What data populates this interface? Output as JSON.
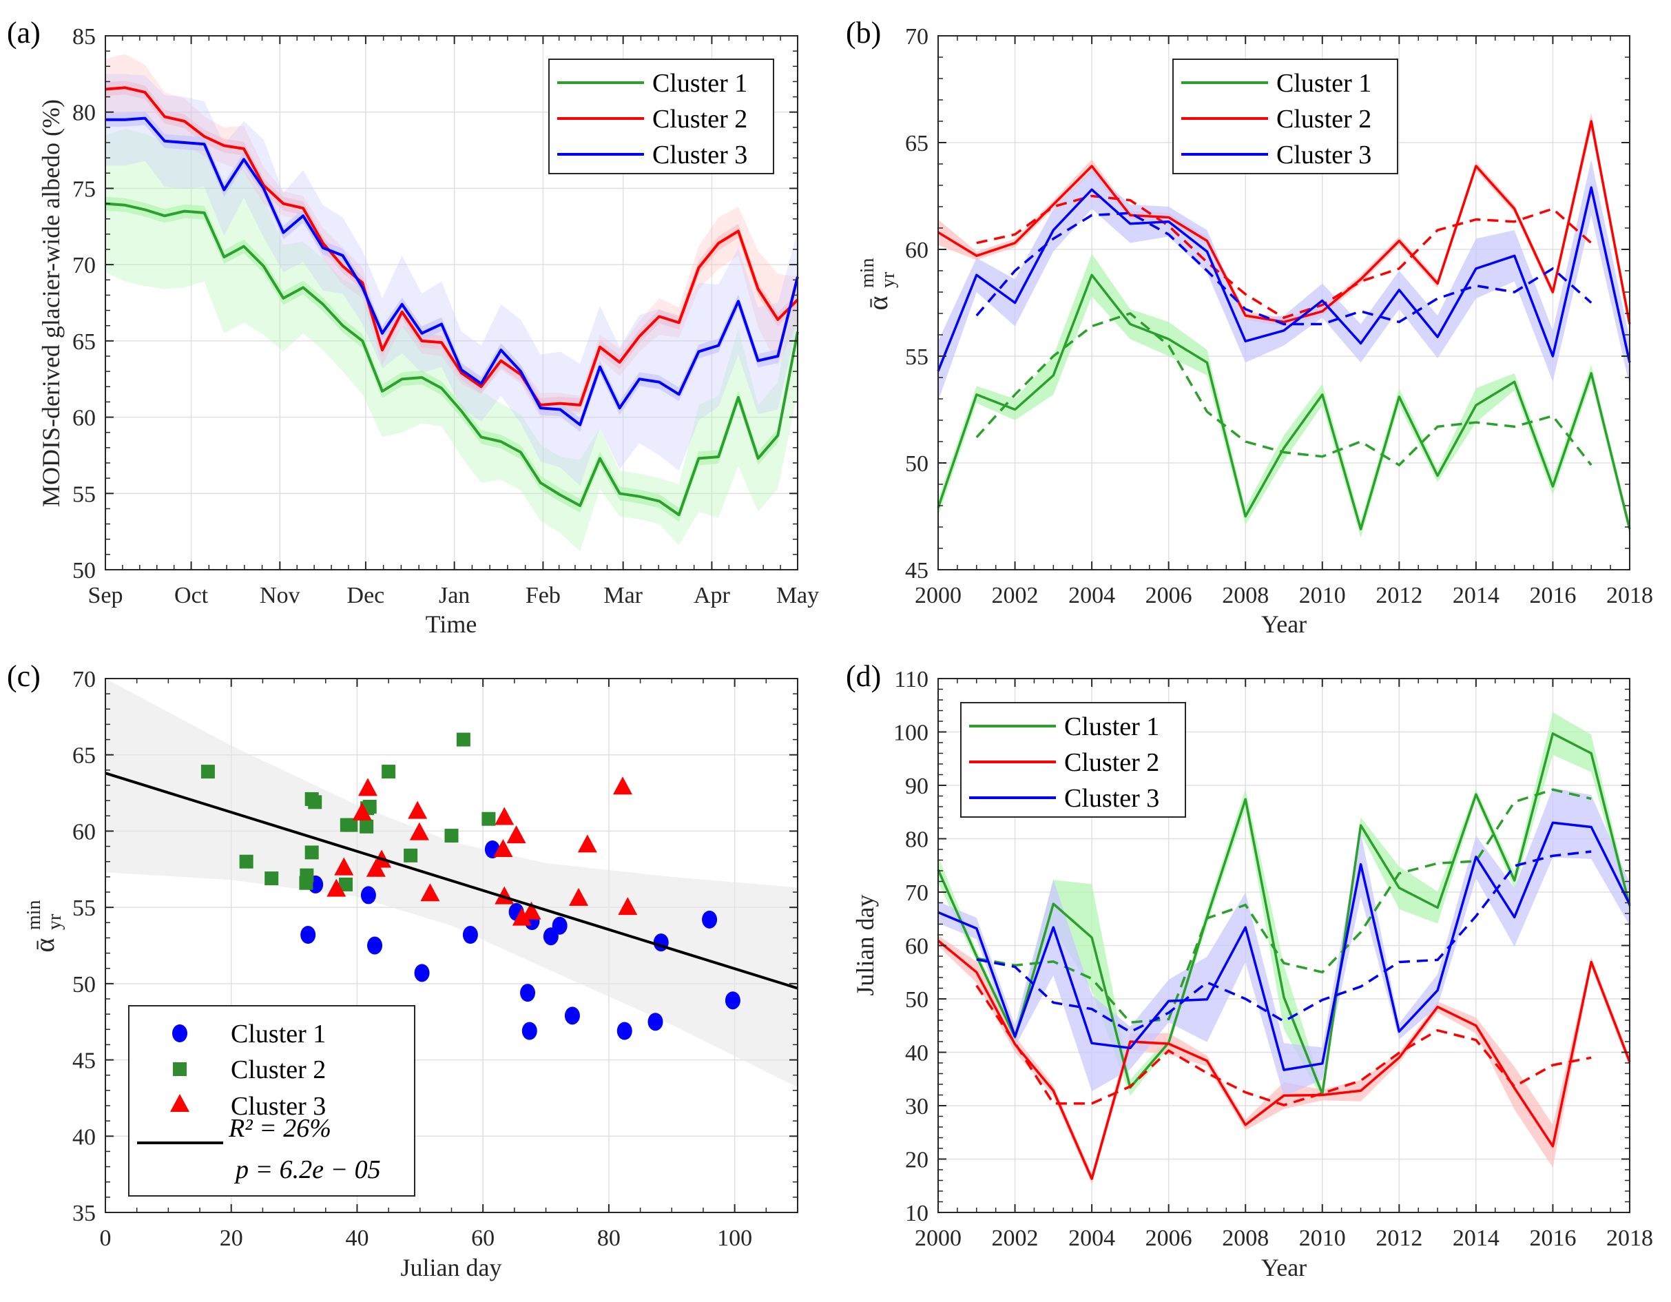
{
  "colors": {
    "cluster1": "#2ca02c",
    "cluster2": "#ff0000",
    "cluster3": "#0000ff",
    "c1_band": "#b3f5b3",
    "c2_band": "#ffc0c0",
    "c3_band": "#c8c8ff",
    "scatter_c1": "#0000ff",
    "scatter_c2": "#2e8b2e",
    "scatter_c3": "#ff0000",
    "ci_band": "#e6e6e6",
    "grid": "#e0e0e0",
    "axis": "#262626"
  },
  "chart_data": [
    {
      "panel": "(a)",
      "type": "line",
      "title": "",
      "xlabel": "Time",
      "ylabel": "MODIS-derived glacier-wide albedo (%)",
      "xlim_days": [
        0,
        242
      ],
      "ylim": [
        50,
        85
      ],
      "yticks": [
        50,
        55,
        60,
        65,
        70,
        75,
        80,
        85
      ],
      "xticks": [
        {
          "label": "Sep",
          "day": 0
        },
        {
          "label": "Oct",
          "day": 30
        },
        {
          "label": "Nov",
          "day": 61
        },
        {
          "label": "Dec",
          "day": 91
        },
        {
          "label": "Jan",
          "day": 122
        },
        {
          "label": "Feb",
          "day": 153
        },
        {
          "label": "Mar",
          "day": 181
        },
        {
          "label": "Apr",
          "day": 212
        },
        {
          "label": "May",
          "day": 242
        }
      ],
      "grid": true,
      "legend": {
        "placement": "top-right",
        "entries": [
          "Cluster 1",
          "Cluster 2",
          "Cluster 3"
        ]
      },
      "x_step_days": 6.914,
      "series": [
        {
          "name": "Cluster 1",
          "color_key": "cluster1",
          "values": [
            74.0,
            73.9,
            73.6,
            73.2,
            73.5,
            73.4,
            70.5,
            71.2,
            69.9,
            67.8,
            68.5,
            67.4,
            66.0,
            65.0,
            61.7,
            62.5,
            62.6,
            61.9,
            60.4,
            58.7,
            58.4,
            57.7,
            55.7,
            54.9,
            54.2,
            57.3,
            55.0,
            54.8,
            54.5,
            53.6,
            57.3,
            57.4,
            61.3,
            57.3,
            58.8,
            65.6
          ],
          "spread": [
            4.5,
            5.0,
            5.0,
            4.8,
            5.0,
            4.5,
            5.0,
            5.0,
            4.5,
            3.5,
            3.0,
            3.0,
            3.0,
            3.5,
            3.0,
            3.5,
            3.0,
            2.5,
            3.0,
            3.0,
            2.5,
            2.5,
            2.5,
            2.5,
            3.0,
            2.0,
            1.5,
            1.5,
            1.5,
            2.0,
            3.5,
            4.0,
            4.5,
            3.5,
            3.5,
            4.0
          ]
        },
        {
          "name": "Cluster 2",
          "color_key": "cluster2",
          "values": [
            81.5,
            81.6,
            81.3,
            79.7,
            79.4,
            78.4,
            77.8,
            77.6,
            75.2,
            74.0,
            73.7,
            71.4,
            69.9,
            68.8,
            64.4,
            66.9,
            65.0,
            64.9,
            62.9,
            62.0,
            63.7,
            62.8,
            60.8,
            60.9,
            60.8,
            64.6,
            63.6,
            65.3,
            66.6,
            66.2,
            69.8,
            71.4,
            72.2,
            68.4,
            66.4,
            67.7
          ],
          "spread": [
            2.0,
            2.2,
            1.8,
            1.6,
            1.5,
            1.3,
            1.2,
            1.5,
            1.2,
            0.8,
            0.8,
            1.0,
            1.2,
            1.0,
            1.0,
            0.9,
            0.8,
            0.9,
            0.7,
            0.5,
            0.6,
            0.6,
            0.8,
            0.7,
            0.6,
            0.8,
            0.9,
            1.0,
            1.2,
            1.0,
            1.4,
            1.7,
            1.6,
            2.5,
            3.0,
            1.5
          ]
        },
        {
          "name": "Cluster 3",
          "color_key": "cluster3",
          "values": [
            79.5,
            79.5,
            79.6,
            78.1,
            78.0,
            77.9,
            74.9,
            76.9,
            75.0,
            72.1,
            73.2,
            71.1,
            70.6,
            68.5,
            65.5,
            67.4,
            65.5,
            66.1,
            63.1,
            62.2,
            64.4,
            63.0,
            60.6,
            60.5,
            59.5,
            63.3,
            60.6,
            62.5,
            62.3,
            61.5,
            64.3,
            64.7,
            67.6,
            63.7,
            64.0,
            69.2
          ],
          "spread": [
            3.0,
            3.0,
            2.8,
            3.0,
            3.0,
            2.8,
            3.0,
            2.5,
            3.2,
            2.6,
            3.0,
            2.8,
            2.5,
            2.4,
            2.3,
            3.2,
            2.6,
            2.8,
            2.5,
            2.5,
            3.0,
            3.4,
            3.5,
            3.8,
            4.0,
            4.0,
            4.0,
            4.2,
            4.8,
            5.0,
            4.5,
            4.0,
            3.5,
            3.5,
            3.5,
            3.0
          ]
        }
      ]
    },
    {
      "panel": "(b)",
      "type": "line",
      "title": "",
      "xlabel": "Year",
      "ylabel": "ᾱ_yr^min",
      "xlim": [
        2000,
        2018
      ],
      "ylim": [
        45,
        70
      ],
      "xticks": [
        2000,
        2002,
        2004,
        2006,
        2008,
        2010,
        2012,
        2014,
        2016,
        2018
      ],
      "yticks": [
        45,
        50,
        55,
        60,
        65,
        70
      ],
      "grid": true,
      "legend": {
        "placement": "top-center",
        "entries": [
          "Cluster 1",
          "Cluster 2",
          "Cluster 3"
        ]
      },
      "x": [
        2000,
        2001,
        2002,
        2003,
        2004,
        2005,
        2006,
        2007,
        2008,
        2009,
        2010,
        2011,
        2012,
        2013,
        2014,
        2015,
        2016,
        2017,
        2018
      ],
      "x_trend": [
        2001,
        2002,
        2003,
        2004,
        2005,
        2006,
        2007,
        2008,
        2009,
        2010,
        2011,
        2012,
        2013,
        2014,
        2015,
        2016,
        2017
      ],
      "series": [
        {
          "name": "Cluster 1",
          "color_key": "cluster1",
          "values": [
            47.9,
            53.2,
            52.5,
            54.1,
            58.8,
            56.5,
            55.8,
            54.7,
            47.5,
            50.7,
            53.2,
            46.9,
            53.1,
            49.4,
            52.7,
            53.8,
            48.9,
            54.2,
            46.9
          ],
          "spread": [
            0.4,
            0.4,
            0.5,
            0.9,
            1.0,
            0.7,
            0.8,
            0.6,
            0.4,
            0.6,
            0.5,
            0.4,
            0.4,
            0.3,
            0.8,
            0.4,
            0.4,
            0.4,
            0.3
          ],
          "trend": [
            51.2,
            53.2,
            55.0,
            56.4,
            57.0,
            55.5,
            52.4,
            51.0,
            50.5,
            50.3,
            51.0,
            49.9,
            51.7,
            51.9,
            51.7,
            52.2,
            49.9
          ]
        },
        {
          "name": "Cluster 2",
          "color_key": "cluster2",
          "values": [
            60.8,
            59.7,
            60.3,
            62.1,
            63.9,
            61.6,
            61.5,
            60.4,
            56.9,
            56.6,
            57.1,
            58.6,
            60.4,
            58.4,
            63.9,
            61.9,
            58.0,
            66.0,
            56.5
          ],
          "spread": [
            0.6,
            0.2,
            0.2,
            0.2,
            0.3,
            0.2,
            0.2,
            0.2,
            0.2,
            0.2,
            0.2,
            0.2,
            0.2,
            0.2,
            0.2,
            0.2,
            0.2,
            0.4,
            0.2
          ],
          "trend": [
            60.3,
            60.7,
            62.0,
            62.5,
            62.3,
            61.1,
            59.4,
            57.9,
            56.8,
            57.4,
            58.5,
            59.1,
            60.9,
            61.4,
            61.3,
            61.9,
            60.3
          ]
        },
        {
          "name": "Cluster 3",
          "color_key": "cluster3",
          "values": [
            54.3,
            58.8,
            57.5,
            60.9,
            62.8,
            61.2,
            61.3,
            59.9,
            55.7,
            56.2,
            57.6,
            55.6,
            58.1,
            55.9,
            59.1,
            59.7,
            55.0,
            62.9,
            54.7
          ],
          "spread": [
            1.4,
            0.8,
            1.1,
            1.0,
            0.9,
            0.9,
            0.7,
            1.0,
            1.0,
            0.7,
            0.8,
            0.9,
            0.9,
            1.0,
            1.4,
            1.2,
            1.2,
            1.3,
            1.1
          ],
          "trend": [
            56.9,
            59.0,
            60.5,
            61.6,
            61.7,
            60.7,
            59.0,
            57.2,
            56.5,
            56.5,
            57.1,
            56.6,
            57.7,
            58.3,
            58.0,
            59.1,
            57.5
          ]
        }
      ]
    },
    {
      "panel": "(c)",
      "type": "scatter",
      "title": "",
      "xlabel": "Julian day",
      "ylabel": "ᾱ_yr^min",
      "xlim": [
        0,
        110
      ],
      "ylim": [
        35,
        70
      ],
      "xticks": [
        0,
        20,
        40,
        60,
        80,
        100
      ],
      "yticks": [
        35,
        40,
        45,
        50,
        55,
        60,
        65,
        70
      ],
      "grid": true,
      "legend": {
        "placement": "bottom-left",
        "entries": [
          "Cluster 1",
          "Cluster 2",
          "Cluster 3"
        ]
      },
      "series": [
        {
          "name": "Cluster 1",
          "marker": "circle",
          "color_key": "scatter_c1",
          "x": [
            74.2,
            58.0,
            42.8,
            67.8,
            61.5,
            33.4,
            41.8,
            65.3,
            87.4,
            50.3,
            32.2,
            82.5,
            70.8,
            67.1,
            88.3,
            72.2,
            99.7,
            96.0,
            67.4
          ],
          "y": [
            47.9,
            53.2,
            52.5,
            54.1,
            58.8,
            56.5,
            55.8,
            54.7,
            47.5,
            50.7,
            53.2,
            46.9,
            53.1,
            49.4,
            52.7,
            53.8,
            48.9,
            54.2,
            46.9
          ]
        },
        {
          "name": "Cluster 2",
          "marker": "square",
          "color_key": "scatter_c2",
          "x": [
            60.9,
            55.0,
            41.5,
            32.8,
            16.3,
            42.0,
            41.6,
            38.4,
            26.4,
            31.9,
            32.0,
            32.8,
            39.0,
            48.5,
            45.0,
            33.3,
            22.4,
            56.9,
            38.2
          ],
          "y": [
            60.8,
            59.7,
            60.3,
            62.1,
            63.9,
            61.6,
            61.5,
            60.4,
            56.9,
            56.6,
            57.1,
            58.6,
            60.4,
            58.4,
            63.9,
            61.9,
            58.0,
            66.0,
            56.5
          ]
        },
        {
          "name": "Cluster 3",
          "marker": "triangle",
          "color_key": "scatter_c3",
          "x": [
            66.2,
            63.2,
            43.0,
            63.4,
            41.7,
            40.8,
            49.6,
            49.9,
            63.4,
            36.7,
            37.9,
            75.2,
            43.9,
            51.6,
            76.6,
            65.3,
            83.0,
            82.2,
            67.7
          ],
          "y": [
            54.3,
            58.8,
            57.5,
            60.9,
            62.8,
            61.2,
            61.3,
            59.9,
            55.7,
            56.2,
            57.6,
            55.6,
            58.1,
            55.9,
            59.1,
            59.7,
            55.0,
            62.9,
            54.7
          ]
        }
      ],
      "regression": {
        "intercept": 63.8,
        "slope": -0.1282,
        "ci_upper": [
          [
            0,
            70.0
          ],
          [
            20,
            65.6
          ],
          [
            40,
            61.7
          ],
          [
            55,
            59.3
          ],
          [
            70,
            57.9
          ],
          [
            90,
            57.0
          ],
          [
            110,
            56.3
          ]
        ],
        "ci_lower": [
          [
            0,
            57.3
          ],
          [
            20,
            56.8
          ],
          [
            40,
            55.7
          ],
          [
            55,
            53.8
          ],
          [
            70,
            51.0
          ],
          [
            90,
            47.3
          ],
          [
            110,
            43.2
          ]
        ],
        "r2_label": "R² = 26%",
        "p_label": "p = 6.2e − 05"
      }
    },
    {
      "panel": "(d)",
      "type": "line",
      "title": "",
      "xlabel": "Year",
      "ylabel": "Julian day",
      "xlim": [
        2000,
        2018
      ],
      "ylim": [
        10,
        110
      ],
      "xticks": [
        2000,
        2002,
        2004,
        2006,
        2008,
        2010,
        2012,
        2014,
        2016,
        2018
      ],
      "yticks": [
        10,
        20,
        30,
        40,
        50,
        60,
        70,
        80,
        90,
        100,
        110
      ],
      "grid": true,
      "legend": {
        "placement": "top-left",
        "entries": [
          "Cluster 1",
          "Cluster 2",
          "Cluster 3"
        ]
      },
      "x": [
        2000,
        2001,
        2002,
        2003,
        2004,
        2005,
        2006,
        2007,
        2008,
        2009,
        2010,
        2011,
        2012,
        2013,
        2014,
        2015,
        2016,
        2017,
        2018
      ],
      "x_trend": [
        2001,
        2002,
        2003,
        2004,
        2005,
        2006,
        2007,
        2008,
        2009,
        2010,
        2011,
        2012,
        2013,
        2014,
        2015,
        2016,
        2017
      ],
      "series": [
        {
          "name": "Cluster 1",
          "color_key": "cluster1",
          "values": [
            74.2,
            58.0,
            42.8,
            67.8,
            61.5,
            33.4,
            41.8,
            65.3,
            87.4,
            50.3,
            32.2,
            82.5,
            70.8,
            67.1,
            88.3,
            72.2,
            99.7,
            96.0,
            67.4
          ],
          "spread": [
            2.5,
            1.0,
            1.0,
            4.5,
            10.0,
            1.5,
            1.0,
            1.5,
            2.0,
            6.0,
            1.0,
            1.5,
            4.0,
            3.0,
            1.0,
            1.5,
            4.0,
            3.5,
            1.0
          ],
          "trend": [
            57.6,
            56.3,
            57.0,
            53.8,
            45.6,
            46.2,
            65.1,
            67.6,
            56.7,
            55.0,
            62.5,
            73.5,
            75.4,
            75.8,
            86.9,
            89.2,
            87.5
          ]
        },
        {
          "name": "Cluster 2",
          "color_key": "cluster2",
          "values": [
            60.9,
            55.0,
            41.5,
            32.8,
            16.3,
            42.0,
            41.6,
            38.4,
            26.4,
            31.9,
            32.0,
            32.8,
            39.0,
            48.5,
            45.0,
            33.3,
            22.4,
            56.9,
            38.2
          ],
          "spread": [
            1.0,
            2.0,
            1.5,
            1.0,
            1.0,
            1.5,
            2.0,
            1.0,
            1.0,
            2.5,
            1.0,
            2.0,
            1.0,
            1.0,
            1.5,
            4.0,
            4.0,
            1.0,
            1.0
          ],
          "trend": [
            52.5,
            41.7,
            30.4,
            30.4,
            33.6,
            40.3,
            36.1,
            32.5,
            30.1,
            32.3,
            34.7,
            39.9,
            44.1,
            42.3,
            33.6,
            37.6,
            39.0
          ]
        },
        {
          "name": "Cluster 3",
          "color_key": "cluster3",
          "values": [
            66.2,
            63.2,
            43.0,
            63.4,
            41.7,
            40.8,
            49.6,
            49.9,
            63.4,
            36.7,
            37.9,
            75.2,
            43.9,
            51.6,
            76.6,
            65.3,
            83.0,
            82.2,
            67.7
          ],
          "spread": [
            2.0,
            2.0,
            2.0,
            9.0,
            9.0,
            4.0,
            4.0,
            8.0,
            6.5,
            5.0,
            3.0,
            6.0,
            1.5,
            3.0,
            4.0,
            5.5,
            6.5,
            6.0,
            4.0
          ],
          "trend": [
            57.4,
            56.0,
            49.3,
            48.1,
            43.8,
            47.4,
            53.1,
            50.0,
            45.8,
            49.8,
            52.3,
            56.9,
            57.3,
            65.5,
            74.9,
            76.8,
            77.6
          ]
        }
      ]
    }
  ]
}
